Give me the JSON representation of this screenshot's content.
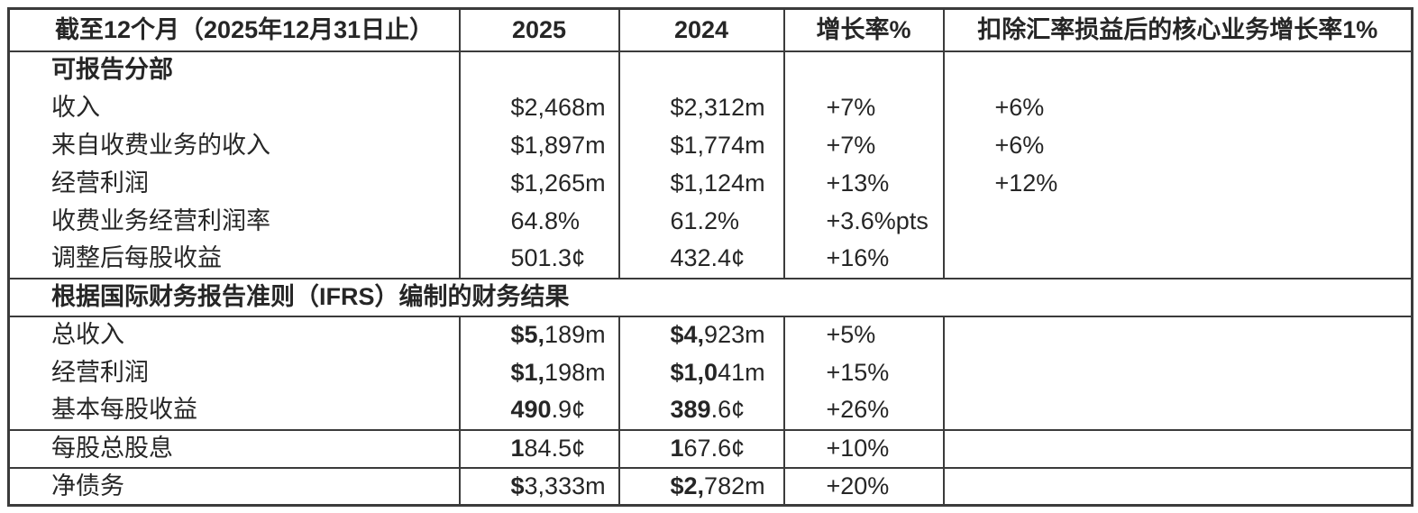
{
  "page": {
    "background_color": "#ffffff",
    "text_color": "#262626",
    "border_color": "#3b3b3b"
  },
  "table": {
    "header": {
      "period": "截至12个月（2025年12月31日止）",
      "y2025": "2025",
      "y2024": "2024",
      "growth": "增长率%",
      "core_growth": "扣除汇率损益后的核心业务增长率1%"
    },
    "sections": [
      {
        "title": "可报告分部",
        "banner": false,
        "ruled": false,
        "rows": [
          {
            "label": "收入",
            "y2025": [
              [
                "$2,468m",
                0
              ]
            ],
            "y2024": [
              [
                "$2,312m",
                0
              ]
            ],
            "growth": "+7%",
            "core": "+6%"
          },
          {
            "label": "来自收费业务的收入",
            "y2025": [
              [
                "$1,897m",
                0
              ]
            ],
            "y2024": [
              [
                "$1,774m",
                0
              ]
            ],
            "growth": "+7%",
            "core": "+6%"
          },
          {
            "label": "经营利润",
            "y2025": [
              [
                "$1,265m",
                0
              ]
            ],
            "y2024": [
              [
                "$1,124m",
                0
              ]
            ],
            "growth": "+13%",
            "core": "+12%"
          },
          {
            "label": "收费业务经营利润率",
            "y2025": [
              [
                "64.8%",
                0
              ]
            ],
            "y2024": [
              [
                "61.2%",
                0
              ]
            ],
            "growth": "+3.6%pts",
            "core": ""
          },
          {
            "label": "调整后每股收益",
            "y2025": [
              [
                "501.3¢",
                0
              ]
            ],
            "y2024": [
              [
                "432.4¢",
                0
              ]
            ],
            "growth": "+16%",
            "core": ""
          }
        ]
      },
      {
        "title": "根据国际财务报告准则（IFRS）编制的财务结果",
        "banner": true,
        "ruled": false,
        "rows": [
          {
            "label": "总收入",
            "y2025": [
              [
                "$5,",
                1
              ],
              [
                "189m",
                0
              ]
            ],
            "y2024": [
              [
                "$4,",
                1
              ],
              [
                "923m",
                0
              ]
            ],
            "growth": "+5%",
            "core": ""
          },
          {
            "label": "经营利润",
            "y2025": [
              [
                "$1,",
                1
              ],
              [
                "198m",
                0
              ]
            ],
            "y2024": [
              [
                "$1,0",
                1
              ],
              [
                "41m",
                0
              ]
            ],
            "growth": "+15%",
            "core": ""
          },
          {
            "label": "基本每股收益",
            "y2025": [
              [
                "490",
                1
              ],
              [
                ".9¢",
                0
              ]
            ],
            "y2024": [
              [
                "389",
                1
              ],
              [
                ".6¢",
                0
              ]
            ],
            "growth": "+26%",
            "core": ""
          }
        ]
      },
      {
        "title": "",
        "banner": false,
        "ruled": true,
        "rows": [
          {
            "label": "每股总股息",
            "y2025": [
              [
                "1",
                1
              ],
              [
                "84.5¢",
                0
              ]
            ],
            "y2024": [
              [
                "1",
                1
              ],
              [
                "67.6¢",
                0
              ]
            ],
            "growth": "+10%",
            "core": ""
          }
        ]
      },
      {
        "title": "",
        "banner": false,
        "ruled": true,
        "rows": [
          {
            "label": "净债务",
            "y2025": [
              [
                "$",
                1
              ],
              [
                "3,333m",
                0
              ]
            ],
            "y2024": [
              [
                "$2,",
                1
              ],
              [
                "782m",
                0
              ]
            ],
            "growth": "+20%",
            "core": ""
          }
        ]
      }
    ]
  }
}
